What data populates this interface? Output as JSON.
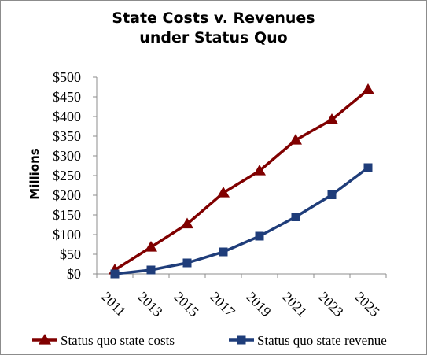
{
  "chart_data": {
    "type": "line",
    "title_lines": [
      "State Costs v. Revenues",
      "under Status Quo"
    ],
    "xlabel": "",
    "ylabel": "Millions",
    "categories": [
      "2011",
      "2013",
      "2015",
      "2017",
      "2019",
      "2021",
      "2023",
      "2025"
    ],
    "y_tick_labels": [
      "$0",
      "$50",
      "$100",
      "$150",
      "$200",
      "$250",
      "$300",
      "$350",
      "$400",
      "$450",
      "$500"
    ],
    "ylim": [
      0,
      500
    ],
    "y_step": 50,
    "grid": false,
    "legend_position": "bottom",
    "series": [
      {
        "name": "Status quo state costs",
        "color": "#800000",
        "marker": "triangle",
        "values": [
          10,
          68,
          127,
          206,
          262,
          340,
          392,
          468
        ]
      },
      {
        "name": "Status quo state revenue",
        "color": "#1F3D7A",
        "marker": "square",
        "values": [
          0,
          10,
          28,
          56,
          96,
          145,
          201,
          270
        ]
      }
    ]
  }
}
